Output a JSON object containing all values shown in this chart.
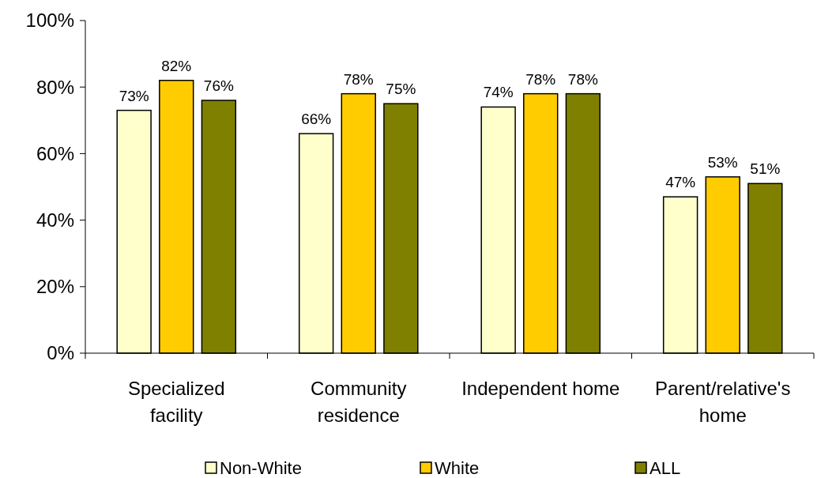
{
  "chart_data": {
    "type": "bar",
    "categories": [
      "Specialized facility",
      "Community residence",
      "Independent home",
      "Parent/relative's home"
    ],
    "series": [
      {
        "name": "Non-White",
        "color": "#ffffcc",
        "values": [
          73,
          66,
          74,
          47
        ],
        "value_labels": [
          "73%",
          "66%",
          "74%",
          "47%"
        ]
      },
      {
        "name": "White",
        "color": "#ffcc00",
        "values": [
          82,
          78,
          78,
          53
        ],
        "value_labels": [
          "82%",
          "78%",
          "78%",
          "53%"
        ]
      },
      {
        "name": "ALL",
        "color": "#808000",
        "values": [
          76,
          75,
          78,
          51
        ],
        "value_labels": [
          "76%",
          "75%",
          "78%",
          "51%"
        ]
      }
    ],
    "ylim": [
      0,
      100
    ],
    "yticks": [
      {
        "value": 0,
        "label": "0%"
      },
      {
        "value": 20,
        "label": "20%"
      },
      {
        "value": 40,
        "label": "40%"
      },
      {
        "value": 60,
        "label": "60%"
      },
      {
        "value": 80,
        "label": "80%"
      },
      {
        "value": 100,
        "label": "100%"
      }
    ],
    "grid": false,
    "legend": "bottom"
  }
}
